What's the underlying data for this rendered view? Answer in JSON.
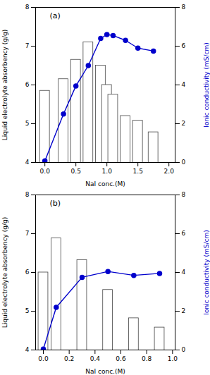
{
  "chart_data": [
    {
      "type": "bar",
      "annotations": [
        "(a)"
      ],
      "x": [
        0.0,
        0.3,
        0.5,
        0.7,
        0.9,
        1.0,
        1.1,
        1.3,
        1.5,
        1.75
      ],
      "series": [
        {
          "type": "bar",
          "color": "white",
          "values": [
            5.85,
            6.15,
            6.65,
            7.1,
            6.5,
            6.0,
            5.75,
            5.2,
            5.08,
            4.78
          ]
        },
        {
          "type": "line",
          "axis": "y2",
          "color": "#0000cc",
          "marker": "circle",
          "values": [
            0.08,
            2.5,
            3.95,
            5.0,
            6.4,
            6.6,
            6.55,
            6.3,
            5.9,
            5.75
          ]
        }
      ],
      "xlabel": "NaI conc.(M)",
      "ylabel": "Liquid electrolyte absorbency (g/g)",
      "y2label": "Ionic conductivity (mS/cm)",
      "xlim": [
        -0.15,
        2.1
      ],
      "xticks": [
        {
          "value": 0,
          "label": "0.0"
        },
        0.5,
        {
          "value": 1,
          "label": "1.0"
        },
        1.5,
        {
          "value": 2,
          "label": "2.0"
        }
      ],
      "ylim": [
        4,
        8
      ],
      "yticks": [
        4,
        5,
        6,
        7,
        8
      ],
      "y2lim": [
        0,
        8
      ],
      "y2ticks": [
        0,
        2,
        4,
        6,
        8
      ]
    },
    {
      "type": "bar",
      "annotations": [
        "(b)"
      ],
      "x": [
        0.0,
        0.1,
        0.3,
        0.5,
        0.7,
        0.9
      ],
      "series": [
        {
          "type": "bar",
          "color": "white",
          "values": [
            6.0,
            6.88,
            6.32,
            5.55,
            4.82,
            4.58
          ]
        },
        {
          "type": "line",
          "axis": "y2",
          "color": "#0000cc",
          "marker": "circle",
          "values": [
            0.05,
            2.2,
            3.75,
            4.05,
            3.85,
            3.95
          ]
        }
      ],
      "xlabel": "NaI conc.(M)",
      "ylabel": "Liquid electrolyte absorbency (g/g)",
      "y2label": "Ionic conductivity (mS/cm)",
      "xlim": [
        -0.06,
        1.02
      ],
      "xticks": [
        {
          "value": 0,
          "label": "0.0"
        },
        0.2,
        0.4,
        0.6,
        0.8,
        {
          "value": 1,
          "label": "1.0"
        }
      ],
      "ylim": [
        4,
        8
      ],
      "yticks": [
        4,
        5,
        6,
        7,
        8
      ],
      "y2lim": [
        0,
        8
      ],
      "y2ticks": [
        0,
        2,
        4,
        6,
        8
      ]
    }
  ]
}
